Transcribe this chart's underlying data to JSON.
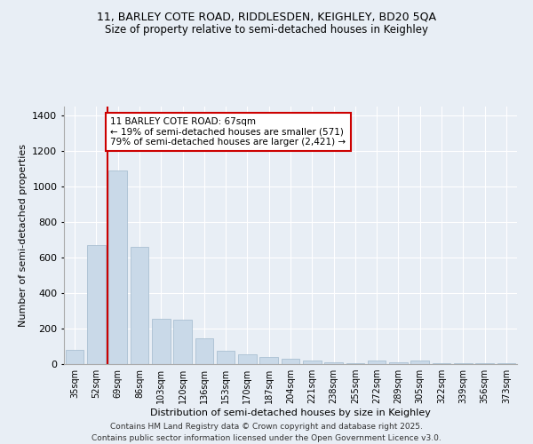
{
  "title1": "11, BARLEY COTE ROAD, RIDDLESDEN, KEIGHLEY, BD20 5QA",
  "title2": "Size of property relative to semi-detached houses in Keighley",
  "xlabel": "Distribution of semi-detached houses by size in Keighley",
  "ylabel": "Number of semi-detached properties",
  "categories": [
    "35sqm",
    "52sqm",
    "69sqm",
    "86sqm",
    "103sqm",
    "120sqm",
    "136sqm",
    "153sqm",
    "170sqm",
    "187sqm",
    "204sqm",
    "221sqm",
    "238sqm",
    "255sqm",
    "272sqm",
    "289sqm",
    "305sqm",
    "322sqm",
    "339sqm",
    "356sqm",
    "373sqm"
  ],
  "values": [
    80,
    670,
    1090,
    660,
    255,
    250,
    145,
    75,
    55,
    40,
    30,
    20,
    10,
    5,
    18,
    8,
    18,
    3,
    3,
    3,
    3
  ],
  "bar_color": "#c9d9e8",
  "bar_edge_color": "#a0b8cc",
  "vline_bin_index": 2,
  "annotation_title": "11 BARLEY COTE ROAD: 67sqm",
  "annotation_line1": "← 19% of semi-detached houses are smaller (571)",
  "annotation_line2": "79% of semi-detached houses are larger (2,421) →",
  "vline_color": "#cc0000",
  "annotation_box_edge": "#cc0000",
  "ylim": [
    0,
    1450
  ],
  "yticks": [
    0,
    200,
    400,
    600,
    800,
    1000,
    1200,
    1400
  ],
  "background_color": "#e8eef5",
  "footer1": "Contains HM Land Registry data © Crown copyright and database right 2025.",
  "footer2": "Contains public sector information licensed under the Open Government Licence v3.0."
}
